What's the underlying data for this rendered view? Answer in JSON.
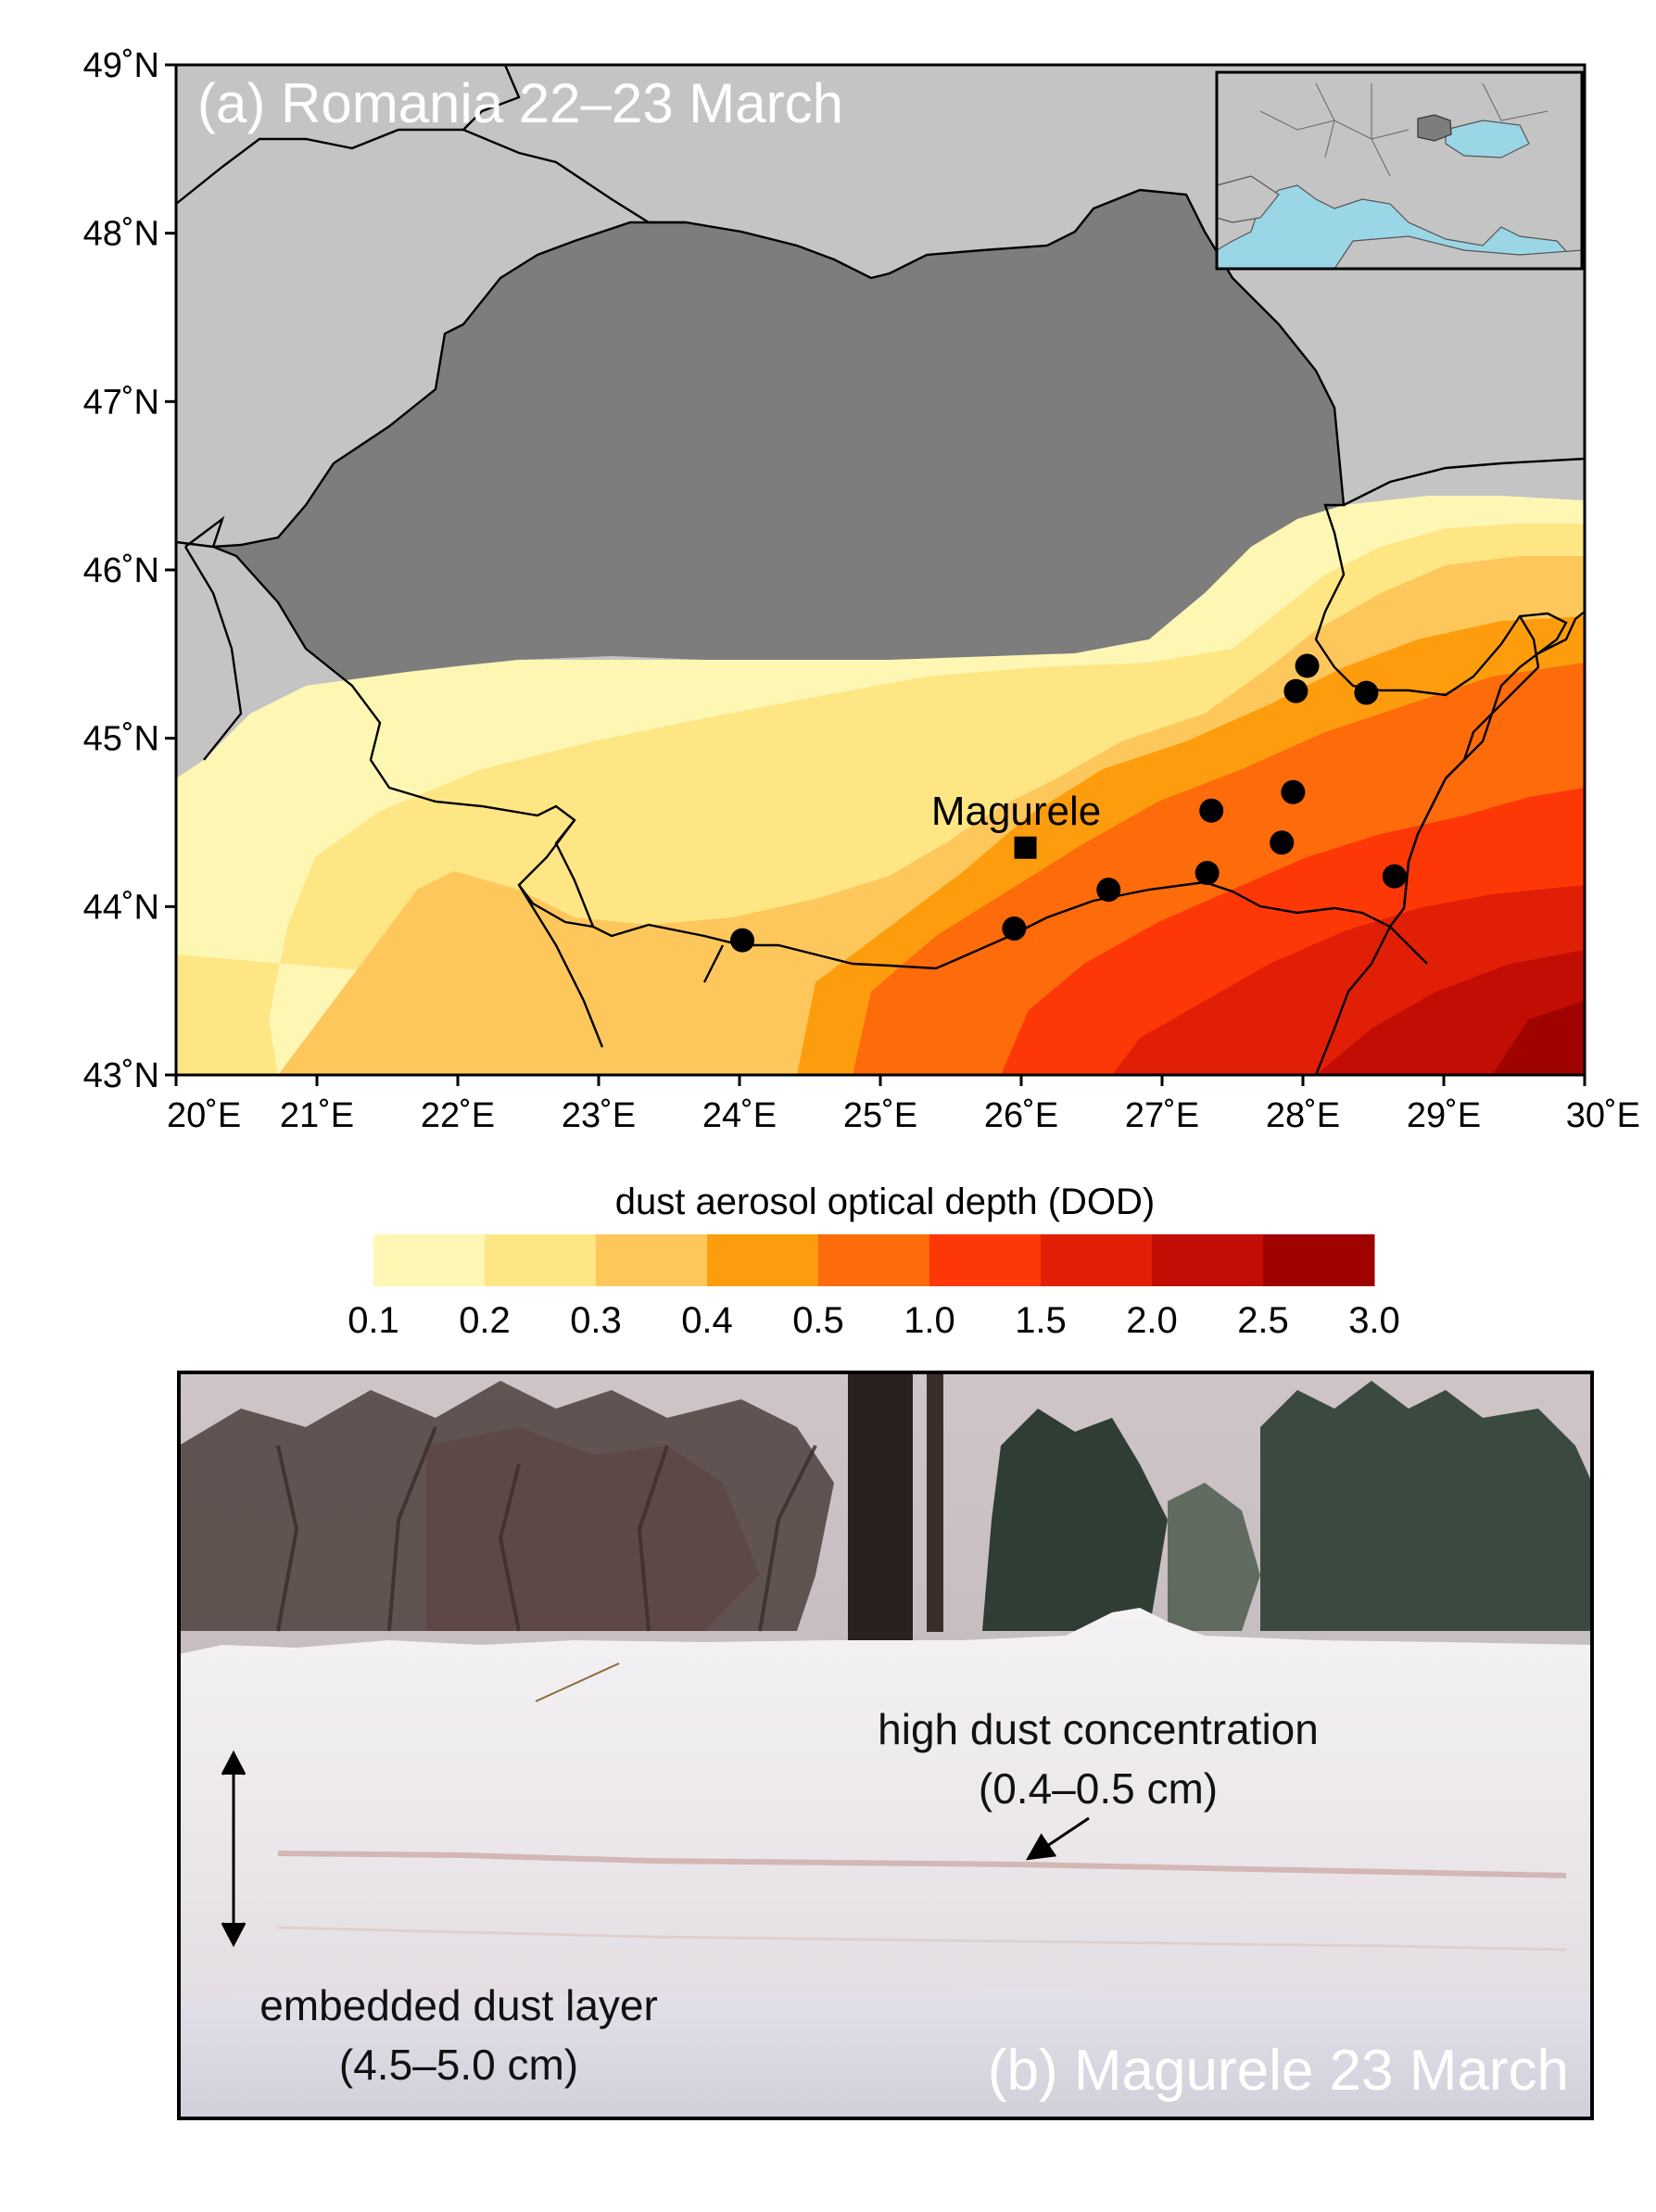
{
  "panel_a": {
    "title": "(a) Romania 22–23 March",
    "lat_labels": [
      "49˚N",
      "48˚N",
      "47˚N",
      "46˚N",
      "45˚N",
      "44˚N",
      "43˚N"
    ],
    "lon_labels": [
      "20˚E",
      "21˚E",
      "22˚E",
      "23˚E",
      "24˚E",
      "25˚E",
      "26˚E",
      "27˚E",
      "28˚E",
      "29˚E",
      "30˚E"
    ],
    "extent": {
      "lon": [
        20,
        30
      ],
      "lat": [
        43,
        49
      ]
    },
    "site_label": "Magurele",
    "site": {
      "lon": 26.03,
      "lat": 44.35
    },
    "stations": [
      {
        "lon": 24.02,
        "lat": 43.8
      },
      {
        "lon": 25.95,
        "lat": 43.87
      },
      {
        "lon": 26.62,
        "lat": 44.1
      },
      {
        "lon": 27.32,
        "lat": 44.2
      },
      {
        "lon": 27.35,
        "lat": 44.57
      },
      {
        "lon": 27.85,
        "lat": 44.38
      },
      {
        "lon": 27.93,
        "lat": 44.68
      },
      {
        "lon": 28.65,
        "lat": 44.18
      },
      {
        "lon": 27.95,
        "lat": 45.28
      },
      {
        "lon": 28.03,
        "lat": 45.43
      },
      {
        "lon": 28.45,
        "lat": 45.27
      }
    ]
  },
  "colorbar": {
    "title": "dust aerosol optical depth (DOD)",
    "ticks": [
      "0.1",
      "0.2",
      "0.3",
      "0.4",
      "0.5",
      "1.0",
      "1.5",
      "2.0",
      "2.5",
      "3.0"
    ],
    "colors": [
      "#fef7b4",
      "#fee685",
      "#fdc75c",
      "#fd9d0e",
      "#fd6b0a",
      "#fd3806",
      "#e11f06",
      "#c10d04",
      "#9e0300"
    ]
  },
  "panel_b": {
    "title": "(b) Magurele 23 March",
    "label_high_line1": "high dust concentration",
    "label_high_line2": "(0.4–0.5 cm)",
    "label_embedded_line1": "embedded dust layer",
    "label_embedded_line2": "(4.5–5.0 cm)"
  },
  "colors": {
    "land": "#c4c4c4",
    "romania": "#7d7d7d",
    "sea": "#9ad6e6"
  }
}
